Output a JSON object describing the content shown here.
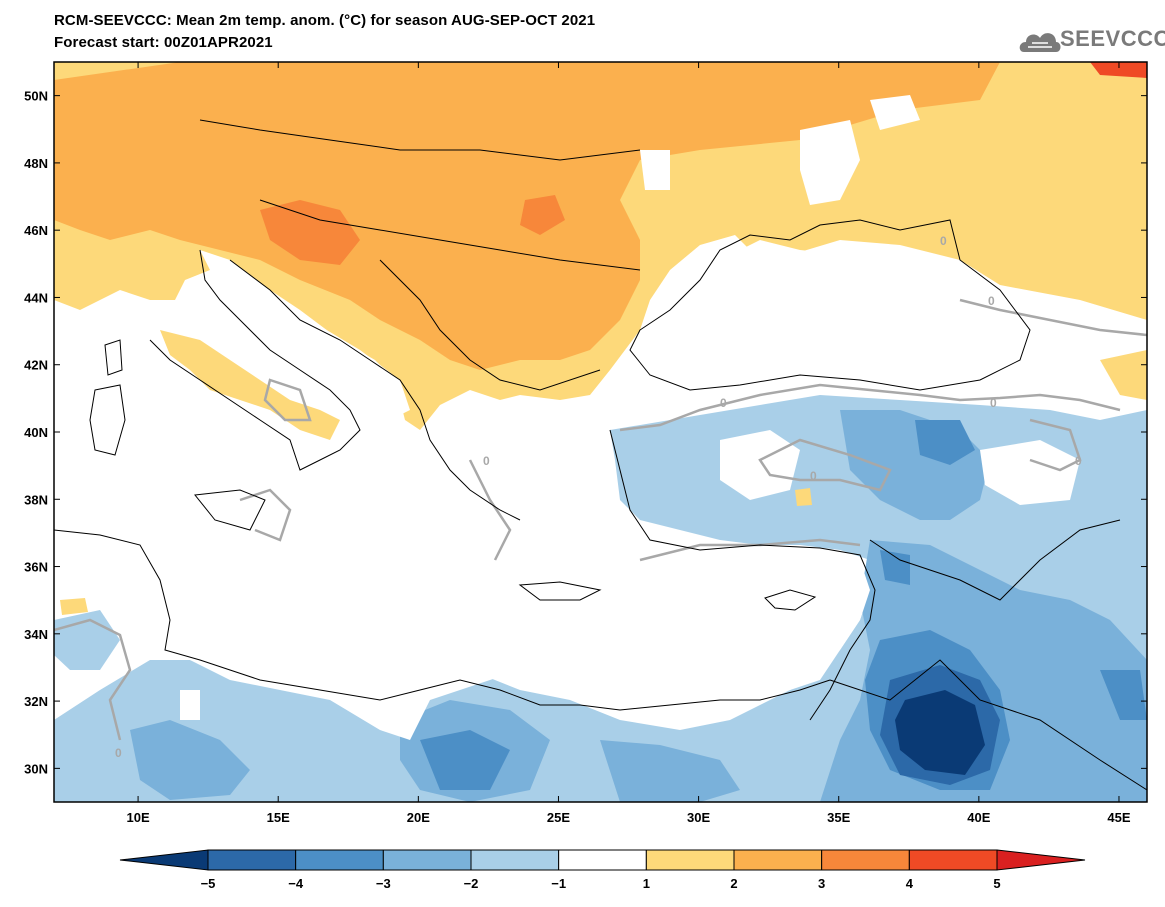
{
  "header": {
    "title_line1": "RCM-SEEVCCC: Mean 2m temp. anom. (°C) for season AUG-SEP-OCT 2021",
    "title_line2": "Forecast start: 00Z01APR2021"
  },
  "logo": {
    "text": "SEEVCCC",
    "icon": "cloud-icon"
  },
  "map": {
    "lon_range": [
      7,
      46
    ],
    "lat_range": [
      29,
      51
    ],
    "lon_ticks": [
      "10E",
      "15E",
      "20E",
      "25E",
      "30E",
      "35E",
      "40E",
      "45E"
    ],
    "lon_tick_values": [
      10,
      15,
      20,
      25,
      30,
      35,
      40,
      45
    ],
    "lat_ticks": [
      "50N",
      "48N",
      "46N",
      "44N",
      "42N",
      "40N",
      "38N",
      "36N",
      "34N",
      "32N",
      "30N"
    ],
    "lat_tick_values": [
      50,
      48,
      46,
      44,
      42,
      40,
      38,
      36,
      34,
      32,
      30
    ],
    "contour_labels": [
      "0",
      "0",
      "0",
      "0",
      "0",
      "0",
      "0",
      "0"
    ]
  },
  "colorbar": {
    "labels": [
      "−5",
      "−4",
      "−3",
      "−2",
      "−1",
      "1",
      "2",
      "3",
      "4",
      "5"
    ],
    "colors": [
      "#0a3a75",
      "#2c69a8",
      "#4c8fc6",
      "#7ab1da",
      "#a9cfe8",
      "#ffffff",
      "#fdd97a",
      "#fbb04e",
      "#f7873a",
      "#ef4a25",
      "#d92020"
    ]
  },
  "colors": {
    "warm1": "#fdd97a",
    "warm2": "#fbb04e",
    "warm3": "#f7873a",
    "warm4": "#ef4a25",
    "cool1": "#a9cfe8",
    "cool2": "#7ab1da",
    "cool3": "#4c8fc6",
    "cool4": "#2c69a8",
    "cool5": "#0a3a75",
    "zero_contour": "#a8a8a8"
  }
}
